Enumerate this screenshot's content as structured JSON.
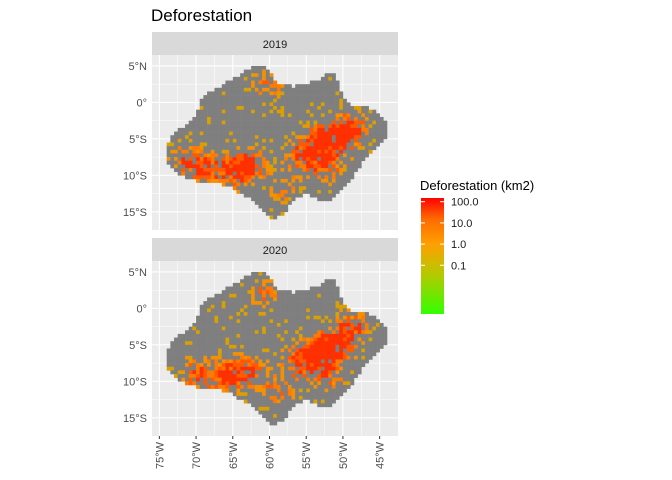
{
  "chart_data": {
    "type": "heatmap",
    "title": "Deforestation",
    "xlabel": "",
    "ylabel": "",
    "xlim": [
      -76,
      -42.5
    ],
    "ylim": [
      -17.5,
      6.5
    ],
    "x_ticks": [
      {
        "value": -75,
        "label": "75°W"
      },
      {
        "value": -70,
        "label": "70°W"
      },
      {
        "value": -65,
        "label": "65°W"
      },
      {
        "value": -60,
        "label": "60°W"
      },
      {
        "value": -55,
        "label": "55°W"
      },
      {
        "value": -50,
        "label": "50°W"
      },
      {
        "value": -45,
        "label": "45°W"
      }
    ],
    "y_ticks": [
      {
        "value": 5,
        "label": "5°N"
      },
      {
        "value": 0,
        "label": "0°"
      },
      {
        "value": -5,
        "label": "5°S"
      },
      {
        "value": -10,
        "label": "10°S"
      },
      {
        "value": -15,
        "label": "15°S"
      }
    ],
    "facets": [
      {
        "label": "2019"
      },
      {
        "label": "2020"
      }
    ],
    "legend": {
      "title": "Deforestation (km2)",
      "scale": "log10",
      "breaks": [
        {
          "value": 100.0,
          "label": "100.0"
        },
        {
          "value": 10.0,
          "label": "10.0"
        },
        {
          "value": 1.0,
          "label": "1.0"
        },
        {
          "value": 0.1,
          "label": "0.1"
        }
      ],
      "range": [
        0.0005,
        150
      ],
      "colors": {
        "low": "#33ff00",
        "mid": "#ff8800",
        "high": "#ff0000"
      }
    },
    "na_color": "#7f7f7f",
    "region_outline": [
      [
        -73.5,
        -4.5
      ],
      [
        -72,
        -3.5
      ],
      [
        -70,
        -2
      ],
      [
        -69,
        1
      ],
      [
        -67,
        2
      ],
      [
        -64.5,
        3.5
      ],
      [
        -63,
        4.5
      ],
      [
        -61.5,
        5.2
      ],
      [
        -60.2,
        4.5
      ],
      [
        -59,
        2.8
      ],
      [
        -57,
        2.2
      ],
      [
        -55,
        2.5
      ],
      [
        -53,
        3.2
      ],
      [
        -51.5,
        4.3
      ],
      [
        -50.5,
        2.5
      ],
      [
        -50,
        0.5
      ],
      [
        -48.5,
        -0.5
      ],
      [
        -46,
        -0.8
      ],
      [
        -44,
        -2.5
      ],
      [
        -44,
        -4.5
      ],
      [
        -45,
        -6
      ],
      [
        -46.5,
        -7
      ],
      [
        -47.5,
        -8.5
      ],
      [
        -48.5,
        -10
      ],
      [
        -50,
        -12
      ],
      [
        -51.5,
        -13.5
      ],
      [
        -53,
        -13.5
      ],
      [
        -55,
        -12.5
      ],
      [
        -57,
        -13.5
      ],
      [
        -58,
        -15.5
      ],
      [
        -60,
        -16
      ],
      [
        -61,
        -14.5
      ],
      [
        -62.5,
        -13.2
      ],
      [
        -64,
        -12.5
      ],
      [
        -65.5,
        -11.5
      ],
      [
        -67.5,
        -11
      ],
      [
        -69.5,
        -11
      ],
      [
        -71.5,
        -10.2
      ],
      [
        -73,
        -9.5
      ],
      [
        -74,
        -8
      ],
      [
        -74,
        -6.5
      ]
    ],
    "hotspots": [
      {
        "year": "2019",
        "lon": -50.5,
        "lat": -4.5,
        "intensity": 1.0
      },
      {
        "year": "2019",
        "lon": -53.0,
        "lat": -5.5,
        "intensity": 0.9
      },
      {
        "year": "2019",
        "lon": -55.5,
        "lat": -7.5,
        "intensity": 0.8
      },
      {
        "year": "2019",
        "lon": -48.5,
        "lat": -3.5,
        "intensity": 0.7
      },
      {
        "year": "2019",
        "lon": -62.5,
        "lat": -8.5,
        "intensity": 0.85
      },
      {
        "year": "2019",
        "lon": -65.0,
        "lat": -9.5,
        "intensity": 0.8
      },
      {
        "year": "2019",
        "lon": -69.0,
        "lat": -9.0,
        "intensity": 0.75
      },
      {
        "year": "2019",
        "lon": -71.5,
        "lat": -8.0,
        "intensity": 0.6
      },
      {
        "year": "2019",
        "lon": -60.0,
        "lat": 2.5,
        "intensity": 0.6
      },
      {
        "year": "2019",
        "lon": -52.0,
        "lat": -9.0,
        "intensity": 0.6
      },
      {
        "year": "2019",
        "lon": -58.0,
        "lat": -12.0,
        "intensity": 0.5
      },
      {
        "year": "2020",
        "lon": -51.0,
        "lat": -5.0,
        "intensity": 1.0
      },
      {
        "year": "2020",
        "lon": -53.0,
        "lat": -6.0,
        "intensity": 0.95
      },
      {
        "year": "2020",
        "lon": -56.0,
        "lat": -7.5,
        "intensity": 0.85
      },
      {
        "year": "2020",
        "lon": -48.5,
        "lat": -2.5,
        "intensity": 0.75
      },
      {
        "year": "2020",
        "lon": -63.0,
        "lat": -8.5,
        "intensity": 0.9
      },
      {
        "year": "2020",
        "lon": -66.0,
        "lat": -9.5,
        "intensity": 0.85
      },
      {
        "year": "2020",
        "lon": -70.0,
        "lat": -9.0,
        "intensity": 0.75
      },
      {
        "year": "2020",
        "lon": -60.5,
        "lat": 2.0,
        "intensity": 0.6
      },
      {
        "year": "2020",
        "lon": -52.0,
        "lat": -9.5,
        "intensity": 0.6
      },
      {
        "year": "2020",
        "lon": -59.0,
        "lat": -11.5,
        "intensity": 0.55
      }
    ]
  }
}
